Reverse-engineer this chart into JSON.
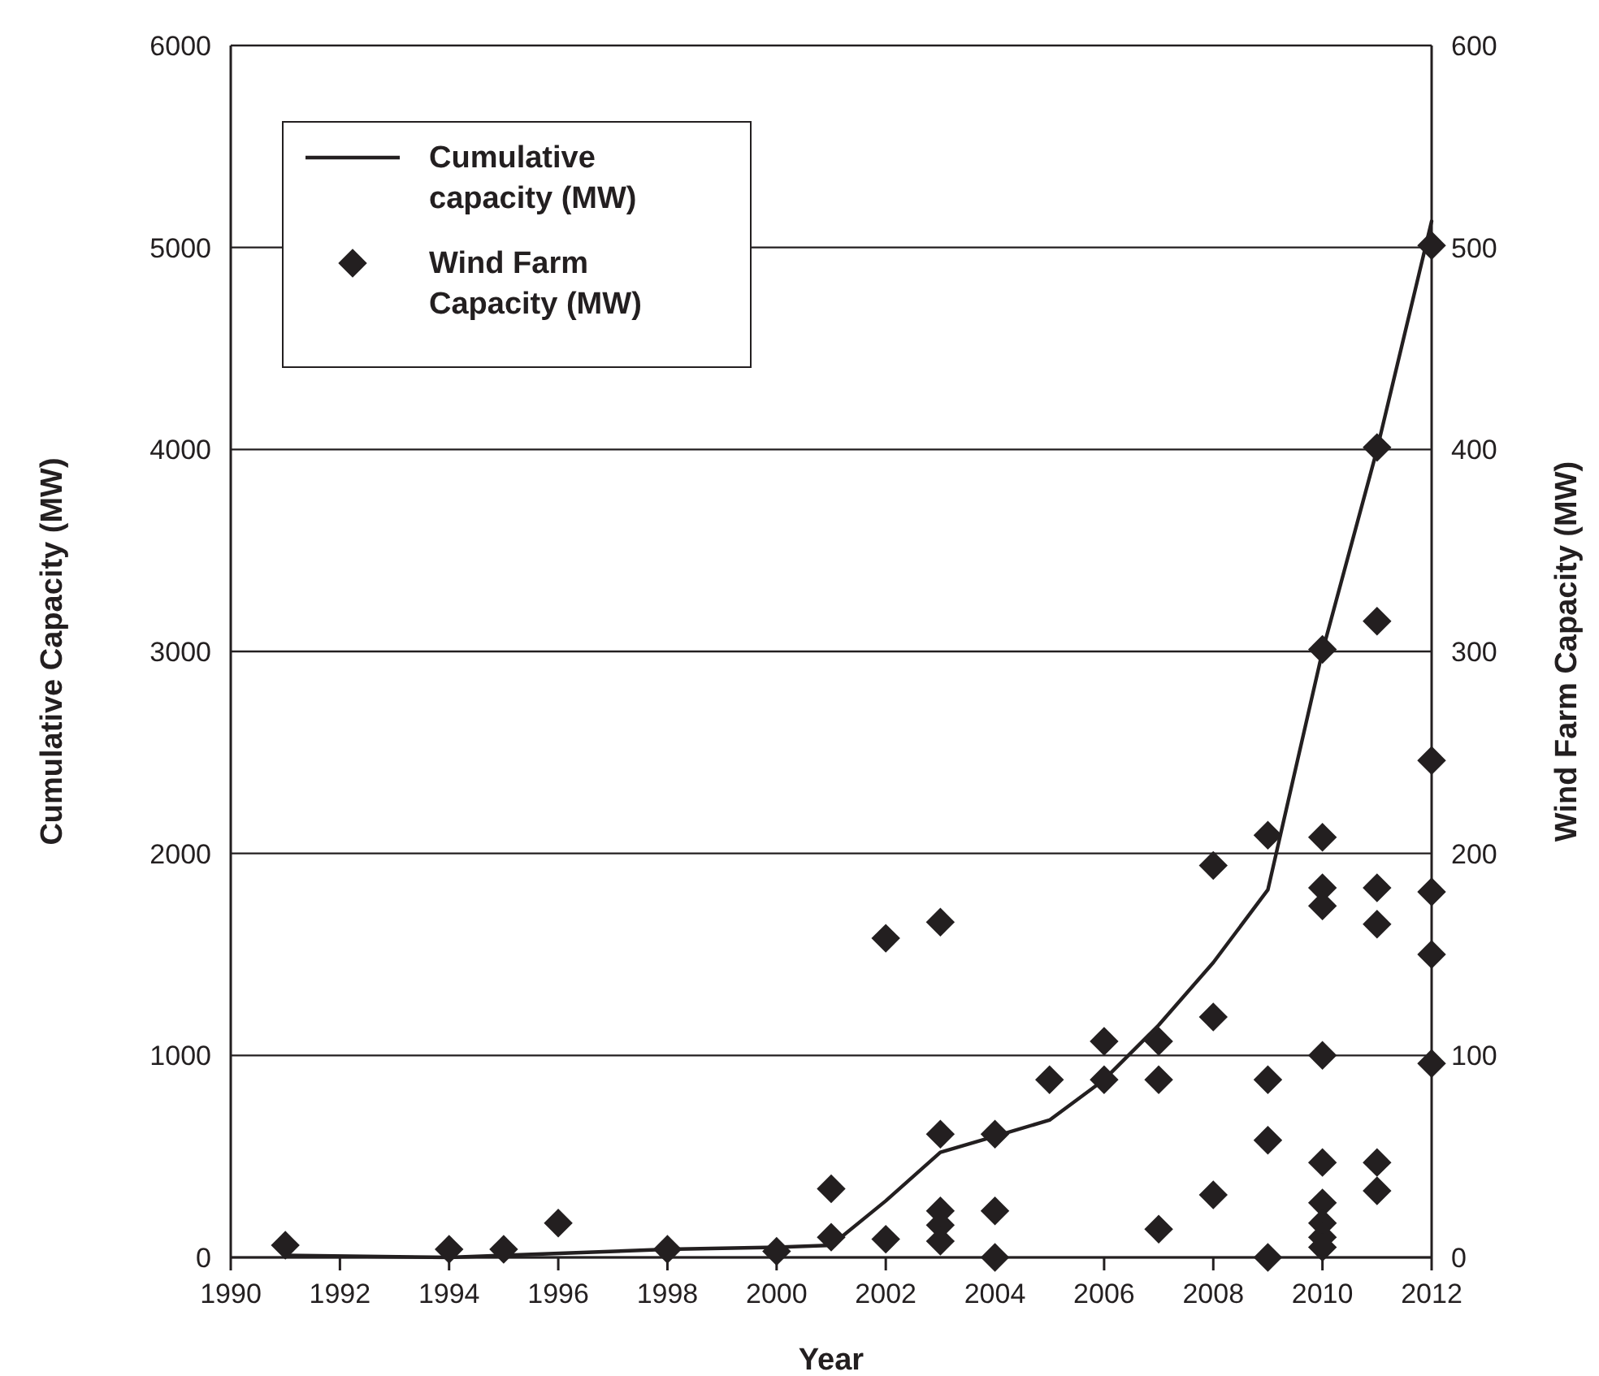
{
  "chart_data": {
    "type": "line",
    "xlabel": "Year",
    "ylabel": "Cumulative Capacity (MW)",
    "y2label": "Wind Farm Capacity (MW)",
    "xlim": [
      1990,
      2012
    ],
    "xticks": [
      1990,
      1992,
      1994,
      1996,
      1998,
      2000,
      2002,
      2004,
      2006,
      2008,
      2010,
      2012
    ],
    "ylim": [
      0,
      6000
    ],
    "yticks": [
      0,
      1000,
      2000,
      3000,
      4000,
      5000,
      6000
    ],
    "y2lim": [
      0,
      600
    ],
    "y2ticks": [
      0,
      100,
      200,
      300,
      400,
      500,
      600
    ],
    "grid": "y",
    "legend": "top left",
    "series": [
      {
        "name": "Cumulative capacity (MW)",
        "color": "#231f20",
        "marker": "none",
        "line_style": "solid",
        "x": [
          1991,
          1994,
          1995,
          1998,
          2000,
          2001,
          2002,
          2003,
          2004,
          2005,
          2006,
          2007,
          2008,
          2009,
          2010,
          2011,
          2012
        ],
        "values": [
          10,
          0,
          10,
          40,
          50,
          60,
          280,
          520,
          600,
          680,
          880,
          1150,
          1460,
          1820,
          3000,
          4000,
          5130
        ]
      },
      {
        "name": "Wind Farm Capacity (MW)",
        "type": "scatter",
        "axis": "y2",
        "color": "#231f20",
        "marker": "diamond",
        "x": [
          1991,
          1994,
          1995,
          1996,
          1998,
          2000,
          2001,
          2001,
          2002,
          2002,
          2003,
          2003,
          2003,
          2003,
          2003,
          2004,
          2004,
          2004,
          2005,
          2006,
          2006,
          2007,
          2007,
          2007,
          2008,
          2008,
          2008,
          2009,
          2009,
          2009,
          2009,
          2010,
          2010,
          2010,
          2010,
          2010,
          2010,
          2010,
          2010,
          2010,
          2010,
          2011,
          2011,
          2011,
          2011,
          2011,
          2011,
          2012,
          2012,
          2012,
          2012,
          2012
        ],
        "values": [
          6,
          4,
          4,
          17,
          4,
          3,
          34,
          10,
          158,
          9,
          166,
          61,
          23,
          16,
          8,
          61,
          23,
          0,
          88,
          107,
          88,
          107,
          88,
          14,
          194,
          119,
          31,
          209,
          88,
          58,
          0,
          301,
          208,
          183,
          174,
          100,
          47,
          27,
          17,
          10,
          5,
          401,
          315,
          183,
          165,
          47,
          33,
          501,
          246,
          181,
          150,
          96
        ]
      }
    ]
  }
}
